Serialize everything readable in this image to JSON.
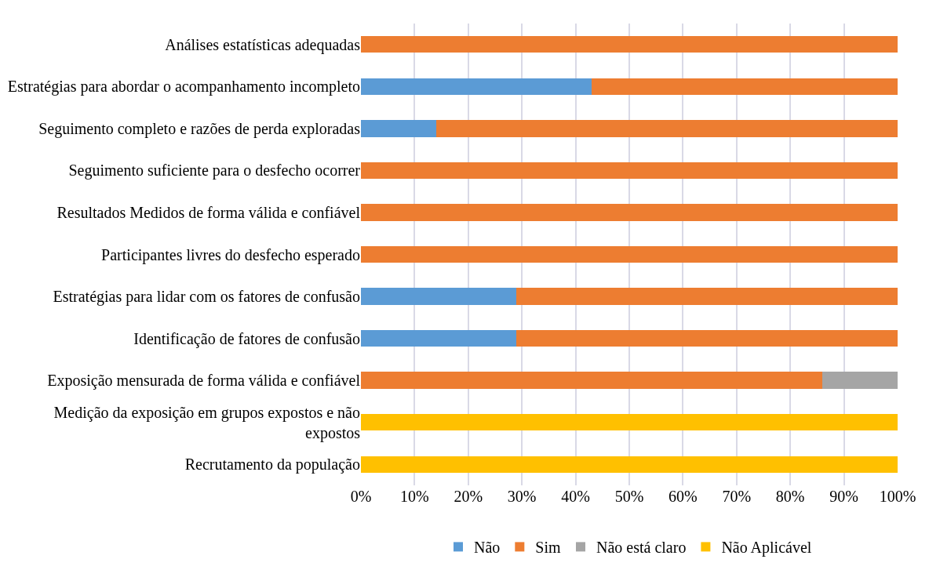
{
  "chart_data": {
    "type": "bar",
    "orientation": "horizontal",
    "stacked": true,
    "categories": [
      "Análises estatísticas adequadas",
      "Estratégias para abordar o acompanhamento incompleto",
      "Seguimento completo e razões de perda exploradas",
      "Seguimento suficiente para o desfecho ocorrer",
      "Resultados Medidos de forma válida e confiável",
      "Participantes livres do desfecho esperado",
      "Estratégias para lidar com os fatores de confusão",
      "Identificação de fatores de confusão",
      "Exposição mensurada de forma válida e confiável",
      "Medição da exposição em grupos expostos e não expostos",
      "Recrutamento da população"
    ],
    "series": [
      {
        "name": "Não",
        "color": "#5b9bd5",
        "values": [
          0,
          43,
          14,
          0,
          0,
          0,
          29,
          29,
          0,
          0,
          0
        ]
      },
      {
        "name": "Sim",
        "color": "#ed7d31",
        "values": [
          100,
          57,
          86,
          100,
          100,
          100,
          71,
          71,
          86,
          0,
          0
        ]
      },
      {
        "name": "Não está claro",
        "color": "#a5a5a5",
        "values": [
          0,
          0,
          0,
          0,
          0,
          0,
          0,
          0,
          14,
          0,
          0
        ]
      },
      {
        "name": "Não Aplicável",
        "color": "#ffc000",
        "values": [
          0,
          0,
          0,
          0,
          0,
          0,
          0,
          0,
          0,
          100,
          100
        ]
      }
    ],
    "xlim": [
      0,
      100
    ],
    "xticks": [
      {
        "value": 0,
        "label": "0%"
      },
      {
        "value": 10,
        "label": "10%"
      },
      {
        "value": 20,
        "label": "20%"
      },
      {
        "value": 30,
        "label": "30%"
      },
      {
        "value": 40,
        "label": "40%"
      },
      {
        "value": 50,
        "label": "50%"
      },
      {
        "value": 60,
        "label": "60%"
      },
      {
        "value": 70,
        "label": "70%"
      },
      {
        "value": 80,
        "label": "80%"
      },
      {
        "value": 90,
        "label": "90%"
      },
      {
        "value": 100,
        "label": "100%"
      }
    ],
    "grid": "x",
    "legend": "bottom"
  }
}
